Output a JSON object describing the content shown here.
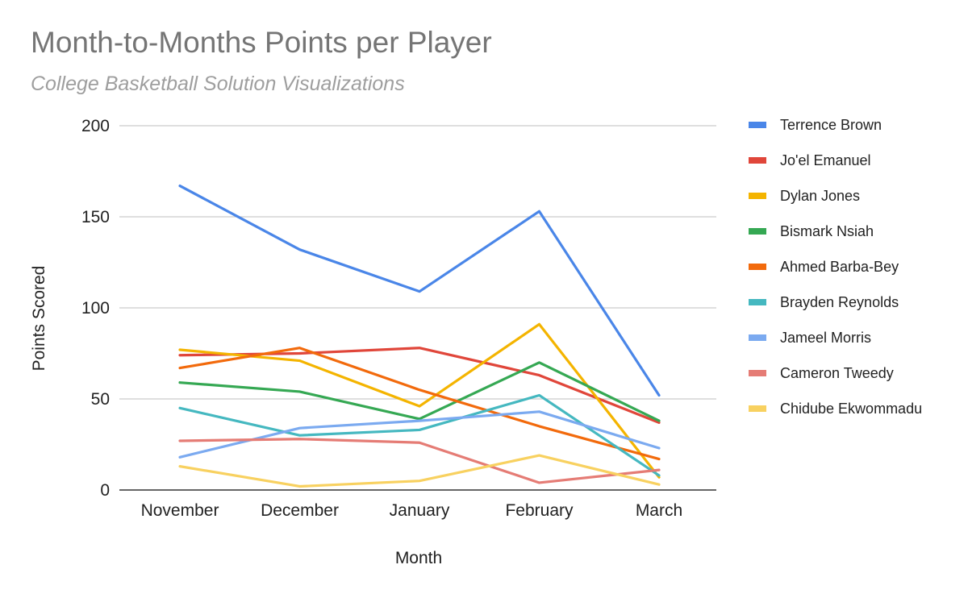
{
  "chart_data": {
    "type": "line",
    "title": "Month-to-Months Points per Player",
    "subtitle": "College Basketball Solution Visualizations",
    "xlabel": "Month",
    "ylabel": "Points Scored",
    "categories": [
      "November",
      "December",
      "January",
      "February",
      "March"
    ],
    "ylim": [
      0,
      200
    ],
    "yticks": [
      0,
      50,
      100,
      150,
      200
    ],
    "grid": true,
    "legend": "right",
    "series": [
      {
        "name": "Terrence Brown",
        "color": "#4a86e8",
        "values": [
          167,
          132,
          109,
          153,
          52
        ]
      },
      {
        "name": "Jo'el Emanuel",
        "color": "#e0463a",
        "values": [
          74,
          75,
          78,
          63,
          37
        ]
      },
      {
        "name": "Dylan Jones",
        "color": "#f4b400",
        "values": [
          77,
          71,
          46,
          91,
          7
        ]
      },
      {
        "name": "Bismark Nsiah",
        "color": "#35a853",
        "values": [
          59,
          54,
          39,
          70,
          38
        ]
      },
      {
        "name": "Ahmed Barba-Bey",
        "color": "#f26a0c",
        "values": [
          67,
          78,
          55,
          35,
          17
        ]
      },
      {
        "name": "Brayden Reynolds",
        "color": "#45b8c0",
        "values": [
          45,
          30,
          33,
          52,
          8
        ]
      },
      {
        "name": "Jameel Morris",
        "color": "#7baaf0",
        "values": [
          18,
          34,
          38,
          43,
          23
        ]
      },
      {
        "name": "Cameron Tweedy",
        "color": "#e57c75",
        "values": [
          27,
          28,
          26,
          4,
          11
        ]
      },
      {
        "name": "Chidube Ekwommadu",
        "color": "#f8d160",
        "values": [
          13,
          2,
          5,
          19,
          3
        ]
      }
    ]
  }
}
